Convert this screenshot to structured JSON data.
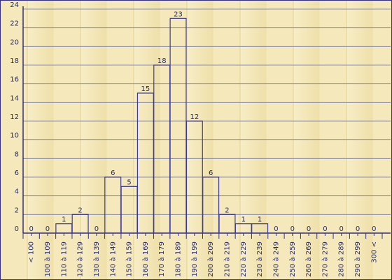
{
  "colors": {
    "axis": "#35307a",
    "grid": "#8a8fb8",
    "bar_stroke": "#3a3a9a",
    "text": "#2a2f6e",
    "background": "#f3e7b8"
  },
  "chart_data": {
    "type": "bar",
    "title": "",
    "xlabel": "",
    "ylabel": "",
    "ylim": [
      0,
      24
    ],
    "y_ticks": [
      0,
      2,
      4,
      6,
      8,
      10,
      12,
      14,
      16,
      18,
      20,
      22,
      24
    ],
    "grid": true,
    "categories": [
      "< 100",
      "100 à 109",
      "110 à 119",
      "120 à 129",
      "130 à 139",
      "140 à 149",
      "150 à 159",
      "160 à 169",
      "170 à 179",
      "180 à 189",
      "190 à 199",
      "200 à 209",
      "210 à 219",
      "220 à 229",
      "230 à 239",
      "240 à 249",
      "250 à 259",
      "260 à 269",
      "270 à 279",
      "280 à 289",
      "290 à 299",
      "300 <"
    ],
    "values": [
      0,
      0,
      1,
      2,
      0,
      6,
      5,
      15,
      18,
      23,
      12,
      6,
      2,
      1,
      1,
      0,
      0,
      0,
      0,
      0,
      0,
      0
    ]
  }
}
